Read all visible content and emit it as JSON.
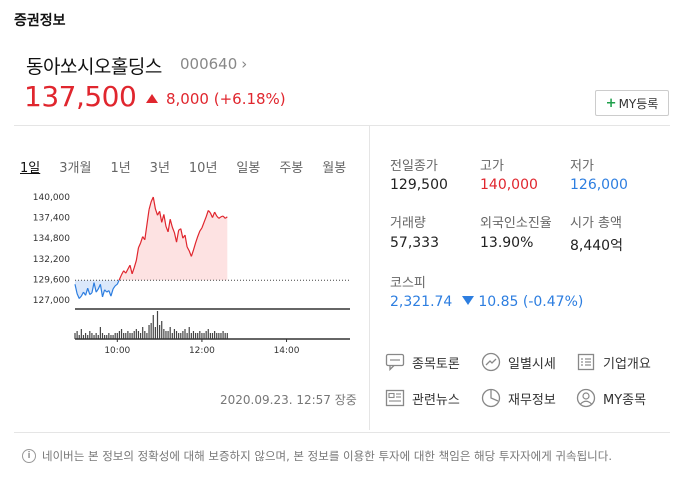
{
  "section_title": "증권정보",
  "stock": {
    "name": "동아쏘시오홀딩스",
    "code": "000640",
    "price": "137,500",
    "change": "8,000",
    "change_pct": "(+6.18%)",
    "my_button": "MY등록"
  },
  "periods": [
    "1일",
    "3개월",
    "1년",
    "3년",
    "10년",
    "일봉",
    "주봉",
    "월봉"
  ],
  "active_period": "1일",
  "stats": {
    "prev_close_label": "전일종가",
    "prev_close": "129,500",
    "high_label": "고가",
    "high": "140,000",
    "low_label": "저가",
    "low": "126,000",
    "volume_label": "거래량",
    "volume": "57,333",
    "foreign_label": "외국인소진율",
    "foreign": "13.90%",
    "mcap_label": "시가 총액",
    "mcap": "8,440억"
  },
  "kospi": {
    "label": "코스피",
    "value": "2,321.74",
    "change": "10.85",
    "change_pct": "(-0.47%)"
  },
  "links": [
    {
      "label": "종목토론",
      "icon": "chat-icon"
    },
    {
      "label": "일별시세",
      "icon": "trend-icon"
    },
    {
      "label": "기업개요",
      "icon": "list-icon"
    },
    {
      "label": "관련뉴스",
      "icon": "news-icon"
    },
    {
      "label": "재무정보",
      "icon": "clock-icon"
    },
    {
      "label": "MY종목",
      "icon": "user-icon"
    }
  ],
  "timestamp": "2020.09.23. 12:57 장중",
  "notice": "네이버는 본 정보의 정확성에 대해 보증하지 않으며, 본 정보를 이용한 투자에 대한 책임은 해당 투자자에게 귀속됩니다.",
  "colors": {
    "up": "#e0262e",
    "down": "#2d7ee0",
    "accent_plus": "#1fa04b"
  },
  "chart_data": {
    "type": "line",
    "ylabels": [
      "140,000",
      "137,400",
      "134,800",
      "132,200",
      "129,600",
      "127,000"
    ],
    "xlabels": [
      "10:00",
      "12:00",
      "14:00"
    ],
    "ylim": [
      126000,
      140500
    ],
    "prev_close": 129500,
    "x_minutes": [
      0,
      3,
      6,
      9,
      12,
      15,
      18,
      21,
      24,
      27,
      30,
      33,
      36,
      39,
      42,
      45,
      48,
      51,
      54,
      57,
      60,
      63,
      66,
      69,
      72,
      75,
      78,
      81,
      84,
      87,
      90,
      93,
      96,
      99,
      102,
      105,
      108,
      111,
      114,
      117,
      120,
      123,
      126,
      129,
      132,
      135,
      138,
      141,
      144,
      147,
      150,
      153,
      156,
      159,
      162,
      165,
      168,
      171,
      174,
      177,
      180,
      183,
      186,
      189,
      192,
      195,
      198,
      201,
      204,
      207,
      210,
      213,
      216
    ],
    "values": [
      129000,
      127800,
      127200,
      127500,
      128000,
      127600,
      128500,
      127700,
      127900,
      129200,
      128000,
      128400,
      129000,
      127400,
      128300,
      128000,
      128200,
      127500,
      128400,
      128800,
      129000,
      129600,
      130200,
      130700,
      130400,
      130900,
      131400,
      130300,
      131100,
      132000,
      133600,
      134200,
      135000,
      134600,
      136500,
      138400,
      139400,
      140000,
      138500,
      137700,
      138200,
      136800,
      137800,
      136300,
      135600,
      137200,
      136200,
      135500,
      134300,
      135800,
      136000,
      134800,
      135200,
      133700,
      133200,
      132500,
      133300,
      134200,
      135000,
      135700,
      136100,
      136800,
      137500,
      138300,
      138000,
      137400,
      138100,
      137600,
      137300,
      137500,
      137600,
      137300,
      137500
    ],
    "volume": [
      3,
      4,
      2,
      5,
      2,
      3,
      2,
      4,
      3,
      2,
      3,
      2,
      6,
      3,
      2,
      2,
      3,
      2,
      2,
      3,
      3,
      4,
      5,
      3,
      3,
      4,
      3,
      3,
      4,
      5,
      4,
      3,
      6,
      4,
      3,
      7,
      8,
      12,
      6,
      14,
      7,
      9,
      5,
      4,
      4,
      6,
      3,
      5,
      4,
      3,
      3,
      4,
      5,
      3,
      6,
      3,
      4,
      3,
      3,
      4,
      3,
      3,
      4,
      5,
      3,
      3,
      4,
      3,
      3,
      3,
      4,
      3,
      3
    ]
  }
}
